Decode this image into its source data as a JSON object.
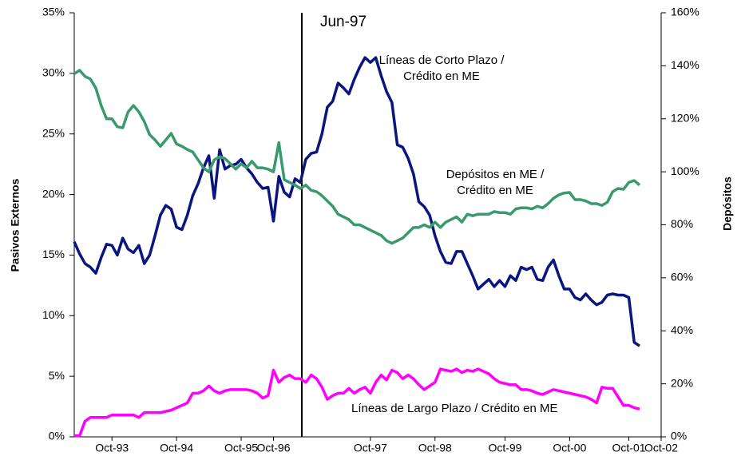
{
  "chart_data": {
    "type": "line",
    "annotation": "Jun-97",
    "ylabel": "Pasivos Externos",
    "y2label": "Depósitos",
    "categories": [
      null,
      null,
      null,
      null,
      null,
      null,
      null,
      "Oct-93",
      null,
      null,
      null,
      null,
      null,
      null,
      null,
      null,
      null,
      null,
      null,
      "Oct-94",
      null,
      null,
      null,
      null,
      null,
      null,
      null,
      null,
      null,
      null,
      null,
      "Oct-95",
      null,
      null,
      null,
      null,
      null,
      "Oct-96",
      null,
      null,
      null,
      null,
      null,
      null,
      null,
      null,
      null,
      null,
      null,
      null,
      null,
      null,
      null,
      null,
      null,
      "Oct-97",
      null,
      null,
      null,
      null,
      null,
      null,
      null,
      null,
      null,
      null,
      null,
      "Oct-98",
      null,
      null,
      null,
      null,
      null,
      null,
      null,
      null,
      null,
      null,
      null,
      null,
      "Oct-99",
      null,
      null,
      null,
      null,
      null,
      null,
      null,
      null,
      null,
      null,
      null,
      "Oct-00",
      null,
      null,
      null,
      null,
      null,
      null,
      null,
      null,
      null,
      null,
      "Oct-01",
      null,
      null,
      null,
      null,
      null,
      "Oct-02"
    ],
    "ylim": [
      0,
      35
    ],
    "yticks": [
      {
        "value": 0,
        "label": "0%"
      },
      {
        "value": 5,
        "label": "5%"
      },
      {
        "value": 10,
        "label": "10%"
      },
      {
        "value": 15,
        "label": "15%"
      },
      {
        "value": 20,
        "label": "20%"
      },
      {
        "value": 25,
        "label": "25%"
      },
      {
        "value": 30,
        "label": "30%"
      },
      {
        "value": 35,
        "label": "35%"
      }
    ],
    "y2lim": [
      0,
      160
    ],
    "y2ticks": [
      {
        "value": 0,
        "label": "0%"
      },
      {
        "value": 20,
        "label": "20%"
      },
      {
        "value": 40,
        "label": "40%"
      },
      {
        "value": 60,
        "label": "60%"
      },
      {
        "value": 80,
        "label": "80%"
      },
      {
        "value": 100,
        "label": "100%"
      },
      {
        "value": 120,
        "label": "120%"
      },
      {
        "value": 140,
        "label": "140%"
      },
      {
        "value": 160,
        "label": "160%"
      }
    ],
    "series": [
      {
        "name": "Líneas de Corto Plazo / Crédito en ME",
        "color": "#0a1680",
        "values": [
          16.1,
          15.1,
          14.3,
          14.0,
          13.5,
          14.8,
          15.9,
          15.8,
          15.0,
          16.4,
          15.5,
          15.2,
          15.8,
          14.3,
          15.0,
          16.6,
          18.3,
          19.1,
          18.8,
          17.3,
          17.1,
          18.3,
          19.9,
          20.9,
          22.2,
          23.2,
          19.7,
          23.7,
          22.1,
          22.4,
          22.5,
          22.9,
          22.2,
          21.7,
          21.0,
          20.5,
          20.6,
          17.8,
          21.5,
          20.2,
          19.8,
          21.3,
          21.0,
          22.9,
          23.4,
          23.5,
          25.0,
          27.2,
          27.7,
          29.2,
          28.8,
          28.3,
          29.5,
          30.5,
          31.3,
          30.9,
          31.3,
          29.8,
          28.5,
          27.6,
          24.1,
          23.9,
          23.0,
          21.7,
          19.4,
          19.0,
          18.3,
          16.6,
          15.3,
          14.4,
          14.3,
          15.3,
          15.3,
          14.3,
          13.3,
          12.2,
          12.6,
          13.0,
          12.4,
          12.9,
          12.4,
          13.3,
          12.9,
          14.0,
          13.8,
          14.0,
          13.0,
          12.9,
          14.0,
          14.6,
          13.3,
          12.2,
          12.2,
          11.5,
          11.3,
          11.8,
          11.3,
          10.9,
          11.1,
          11.7,
          11.8,
          11.7,
          11.7,
          11.5,
          7.8,
          7.5,
          null,
          null,
          null,
          null
        ]
      },
      {
        "name": "Depósitos en ME / Crédito en ME",
        "color": "#3a9a6c",
        "axis": "y2",
        "values": [
          137,
          138.3,
          136,
          135,
          131.6,
          125,
          120,
          120,
          117,
          116.6,
          122.6,
          125,
          122.6,
          119,
          114,
          112,
          109.6,
          112,
          114.5,
          110.5,
          109.6,
          108.4,
          107.5,
          104.5,
          101.5,
          100,
          104.5,
          105.7,
          105,
          103,
          101,
          103,
          101.5,
          104,
          101.5,
          101.5,
          101,
          100,
          111,
          97,
          96,
          95,
          93.7,
          95,
          93,
          92.5,
          91,
          89,
          87,
          84,
          83,
          82,
          80,
          80,
          79,
          78,
          77,
          76,
          74,
          73,
          74,
          75,
          77,
          79,
          79,
          80,
          79,
          81,
          79,
          81,
          82,
          83,
          81,
          84,
          83.4,
          84,
          84,
          84,
          85,
          84.6,
          84.6,
          84,
          86,
          86.4,
          86.4,
          86,
          87,
          86.4,
          88,
          90,
          91.3,
          92,
          92.2,
          89.5,
          89.5,
          89,
          88,
          88,
          87.3,
          88.5,
          92.5,
          93.7,
          93.4,
          96,
          96.7,
          95,
          null,
          null,
          null,
          null
        ]
      },
      {
        "name": "Líneas de Largo Plazo / Crédito en ME",
        "color": "#ff00ff",
        "values": [
          0.1,
          0.1,
          1.3,
          1.6,
          1.6,
          1.6,
          1.6,
          1.8,
          1.8,
          1.8,
          1.8,
          1.8,
          1.6,
          2.0,
          2.0,
          2.0,
          2.0,
          2.1,
          2.2,
          2.4,
          2.6,
          2.8,
          3.6,
          3.6,
          3.8,
          4.2,
          3.8,
          3.6,
          3.8,
          3.9,
          3.9,
          3.9,
          3.9,
          3.8,
          3.6,
          3.2,
          3.4,
          5.5,
          4.5,
          4.9,
          5.1,
          4.8,
          4.8,
          4.5,
          5.1,
          4.8,
          4.1,
          3.1,
          3.4,
          3.6,
          3.6,
          4.0,
          3.6,
          3.9,
          4.1,
          3.6,
          4.5,
          5.1,
          4.7,
          5.5,
          5.3,
          4.8,
          5.1,
          4.8,
          4.3,
          3.9,
          4.2,
          4.5,
          5.6,
          5.5,
          5.4,
          5.6,
          5.3,
          5.5,
          5.4,
          5.6,
          5.4,
          5.2,
          4.8,
          4.5,
          4.4,
          4.3,
          4.3,
          3.9,
          3.9,
          3.8,
          3.6,
          3.5,
          3.7,
          3.9,
          3.8,
          3.7,
          3.6,
          3.5,
          3.4,
          3.3,
          3.1,
          2.8,
          4.1,
          4.0,
          4.0,
          3.3,
          2.6,
          2.6,
          2.4,
          2.3,
          null,
          null,
          null,
          null
        ]
      }
    ]
  }
}
